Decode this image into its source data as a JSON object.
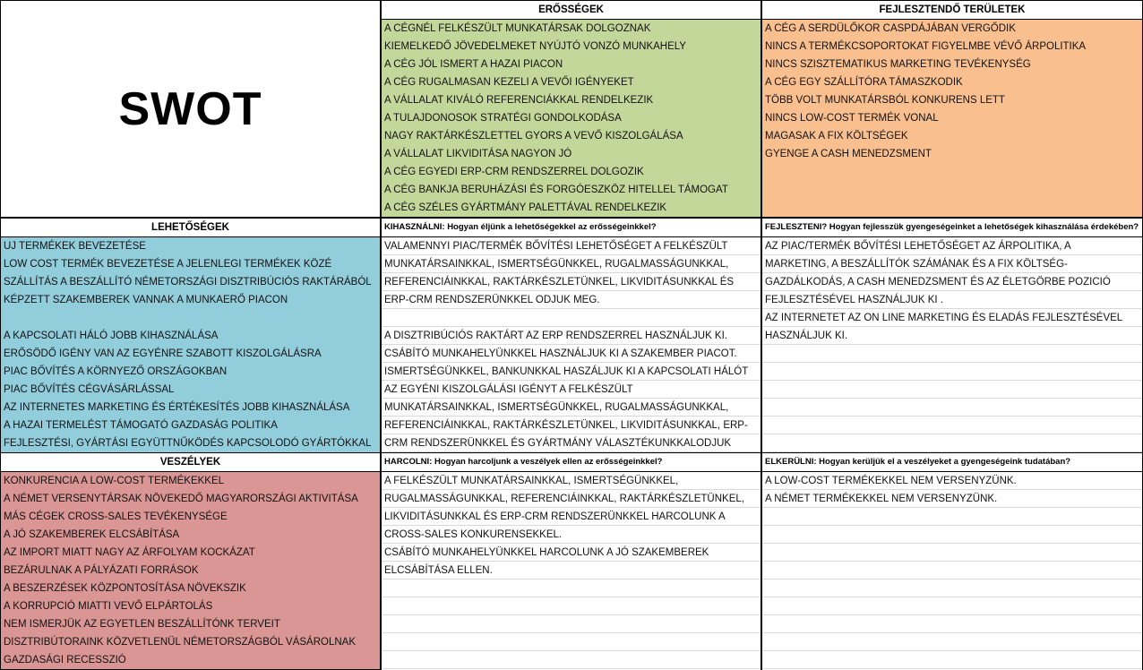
{
  "title": "SWOT",
  "strengths": {
    "heading": "ERŐSSÉGEK",
    "items": [
      "A CÉGNÉL FELKÉSZÜLT MUNKATÁRSAK DOLGOZNAK",
      "KIEMELKEDŐ JÖVEDELMEKET NYÚJTÓ VONZÓ MUNKAHELY",
      "A CÉG JÓL ISMERT A HAZAI PIACON",
      "A CÉG RUGALMASAN KEZELI A VEVŐI IGÉNYEKET",
      "A VÁLLALAT KIVÁLÓ REFERENCIÁKKAL RENDELKEZIK",
      "A  TULAJDONOSOK STRATÉGI GONDOLKODÁSA",
      "NAGY RAKTÁRKÉSZLETTEL GYORS A VEVŐ KISZOLGÁLÁSA",
      "A VÁLLALAT LIKVIDITÁSA NAGYON JÓ",
      "A CÉG EGYEDI ERP-CRM RENDSZERREL DOLGOZIK",
      "A CÉG BANKJA BERUHÁZÁSI ÉS FORGÓESZKÖZ HITELLEL TÁMOGAT",
      "A CÉG SZÉLES GYÁRTMÁNY PALETTÁVAL RENDELKEZIK"
    ]
  },
  "weaknesses": {
    "heading": "FEJLESZTENDŐ TERÜLETEK",
    "items": [
      "A CÉG A SERDÜLŐKOR CASPDÁJÁBAN VERGŐDIK",
      "NINCS A  TERMÉKCSOPORTOKAT FIGYELMBE VÉVŐ ÁRPOLITIKA",
      "NINCS SZISZTEMATIKUS MARKETING TEVÉKENYSÉG",
      "A CÉG EGY SZÁLLÍTÓRA TÁMASZKODIK",
      "TÖBB VOLT MUNKATÁRSBÓL KONKURENS LETT",
      "NINCS LOW-COST TERMÉK VONAL",
      "MAGASAK A FIX KÖLTSÉGEK",
      "GYENGE A CASH MENEDZSMENT"
    ]
  },
  "opportunities": {
    "heading": "LEHETŐSÉGEK",
    "items": [
      "UJ TERMÉKEK BEVEZETÉSE",
      "LOW COST TERMÉK BEVEZETÉSE A JELENLEGI TERMÉKEK KÖZÉ",
      "SZÁLLÍTÁS A BESZÁLLÍTÓ NÉMETORSZÁGI DISZTRIBÚCIÓS RAKTÁRÁBÓL",
      "KÉPZETT SZAKEMBEREK VANNAK A MUNKAERŐ PIACON",
      "A KAPCSOLATI HÁLÓ JOBB KIHASZNÁLÁSA",
      "ERŐSÖDŐ IGÉNY VAN AZ EGYÉNRE SZABOTT KISZOLGÁLÁSRA",
      "PIAC BŐVÍTÉS A KÖRNYEZŐ ORSZÁGOKBAN",
      "PIAC BŐVÍTÉS CÉGVÁSÁRLÁSSAL",
      "AZ INTERNETES MARKETING ÉS ÉRTÉKESÍTÉS  JOBB KIHASZNÁLÁSA",
      "A HAZAI TERMELÉST TÁMOGATÓ GAZDASÁG POLITIKA",
      "FEJLESZTÉSI, GYÁRTÁSI EGYÜTTNŰKÖDÉS KAPCSOLODÓ GYÁRTÓKKAL"
    ]
  },
  "threats": {
    "heading": "VESZÉLYEK",
    "items": [
      "KONKURENCIA A LOW-COST TERMÉKEKKEL",
      "A NÉMET VERSENYTÁRSAK NÖVEKEDŐ MAGYARORSZÁGI AKTIVITÁSA",
      "MÁS CÉGEK CROSS-SALES TEVÉKENYSÉGE",
      "A JÓ SZAKEMBEREK ELCSÁBÍTÁSA",
      "AZ IMPORT MIATT NAGY AZ ÁRFOLYAM KOCKÁZAT",
      "BEZÁRULNAK A PÁLYÁZATI FORRÁSOK",
      "A BESZERZÉSEK KÖZPONTOSÍTÁSA NÖVEKSZIK",
      "A KORRUPCIÓ MIATTI VEVŐ ELPÁRTOLÁS",
      "NEM ISMERJÜK AZ EGYETLEN BESZÁLLÍTÓNK TERVEIT",
      "DISZTRIBÚTORAINK KÖZVETLENÜL NÉMETORSZÁGBÓL VÁSÁROLNAK",
      "GAZDASÁGI RECESSZIÓ"
    ]
  },
  "so": {
    "heading": "KIHASZNÁLNI: Hogyan éljünk a lehetőségekkel az erősségeinkkel?",
    "lines": [
      "VALAMENNYI PIAC/TERMÉK BŐVÍTÉSI LEHETŐSÉGET A FELKÉSZÜLT",
      "MUNKATÁRSAINKKAL, ISMERTSÉGÜNKKEL, RUGALMASSÁGUNKKAL,",
      "REFERENCIÁINKKAL, RAKTÁRKÉSZLETÜNKEL, LIKVIDITÁSUNKKAL ÉS",
      "ERP-CRM RENDSZERÜNKKEL ODJUK MEG.",
      "A DISZTRIBÚCIÓS RAKTÁRT AZ ERP RENDSZERREL HASZNÁLJUK KI.",
      "CSÁBÍTÓ MUNKAHELYÜNKKEL HASZNÁLJUK KI A SZAKEMBER PIACOT.",
      "ISMERTSÉGÜNKKEL, BANKUNKKAL HASZÁLJUK KI A KAPCSOLATI HÁLÓT",
      "AZ EGYÉNI KISZOLGÁLÁSI IGÉNYT A FELKÉSZÜLT",
      "MUNKATÁRSAINKKAL, ISMERTSÉGÜNKKEL, RUGALMASSÁGUNKKAL,",
      "REFERENCIÁINKKAL, RAKTÁRKÉSZLETÜNKEL, LIKVIDITÁSUNKKAL, ERP-",
      "CRM RENDSZERÜNKKEL ÉS GYÁRTMÁNY VÁLASZTÉKUNKKALODJUK"
    ]
  },
  "wo": {
    "heading": "FEJLESZTENI? Hogyan fejlesszük gyengeségeinket a lehetőségek kihasználása érdekében?",
    "lines": [
      "AZ PIAC/TERMÉK BŐVÍTÉSI LEHETŐSÉGET AZ ÁRPOLITIKA, A",
      "MARKETING, A BESZÁLLÍTÓK SZÁMÁNAK ÉS A FIX KÖLTSÉG-",
      "GAZDÁLKODÁS, A CASH MENEDZSMENT ÉS AZ ÉLETGÖRBE POZICIÓ",
      "FEJLESZTÉSÉVEL HASZNÁLJUK KI .",
      "AZ INTERNETET AZ ON LINE MARKETING ÉS ELADÁS FEJLESZTÉSÉVEL",
      "HASZNÁLJUK KI."
    ]
  },
  "st": {
    "heading": "HARCOLNI: Hogyan harcoljunk a veszélyek ellen az erősségeinkkel?",
    "lines": [
      "A FELKÉSZÜLT MUNKATÁRSAINKKAL, ISMERTSÉGÜNKKEL,",
      "RUGALMASSÁGUNKKAL, REFERENCIÁINKKAL, RAKTÁRKÉSZLETÜNKEL,",
      "LIKVIDITÁSUNKKAL ÉS ERP-CRM RENDSZERÜNKKEL HARCOLUNK A",
      "CROSS-SALES KONKURENSEKKEL.",
      "CSÁBÍTÓ MUNKAHELYÜNKKEL HARCOLUNK A JÓ SZAKEMBEREK",
      "ELCSÁBÍTÁSA  ELLEN."
    ]
  },
  "wt": {
    "heading": "ELKERÜLNI: Hogyan kerüljük el a veszélyeket a gyengeségeink tudatában?",
    "lines": [
      "A LOW-COST TERMÉKEKKEL NEM VERSENYZÜNK.",
      "A NÉMET TERMÉKEKKEL NEM VERSENYZÜNK."
    ]
  }
}
